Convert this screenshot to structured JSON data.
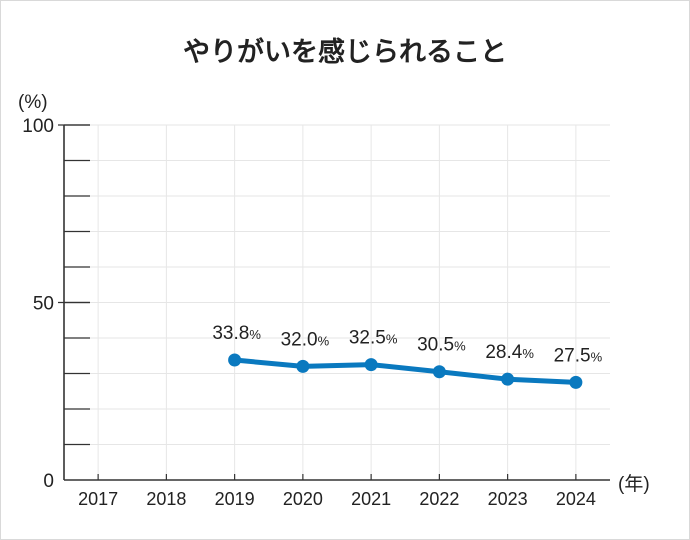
{
  "chart_data": {
    "type": "line",
    "title": "やりがいを感じられること",
    "ylabel": "(%)",
    "xlabel": "(年)",
    "ylim": [
      0,
      100
    ],
    "yticks": [
      0,
      50,
      100
    ],
    "categories": [
      "2017",
      "2018",
      "2019",
      "2020",
      "2021",
      "2022",
      "2023",
      "2024"
    ],
    "series": [
      {
        "values": [
          null,
          null,
          33.8,
          32.0,
          32.5,
          30.5,
          28.4,
          27.5
        ],
        "labels": [
          "",
          "",
          "33.8",
          "32.0",
          "32.5",
          "30.5",
          "28.4",
          "27.5"
        ],
        "unit": "%",
        "color": "#0a79bf"
      }
    ],
    "grid": true,
    "axis_color": "#333333",
    "grid_color": "#e6e6e6"
  }
}
